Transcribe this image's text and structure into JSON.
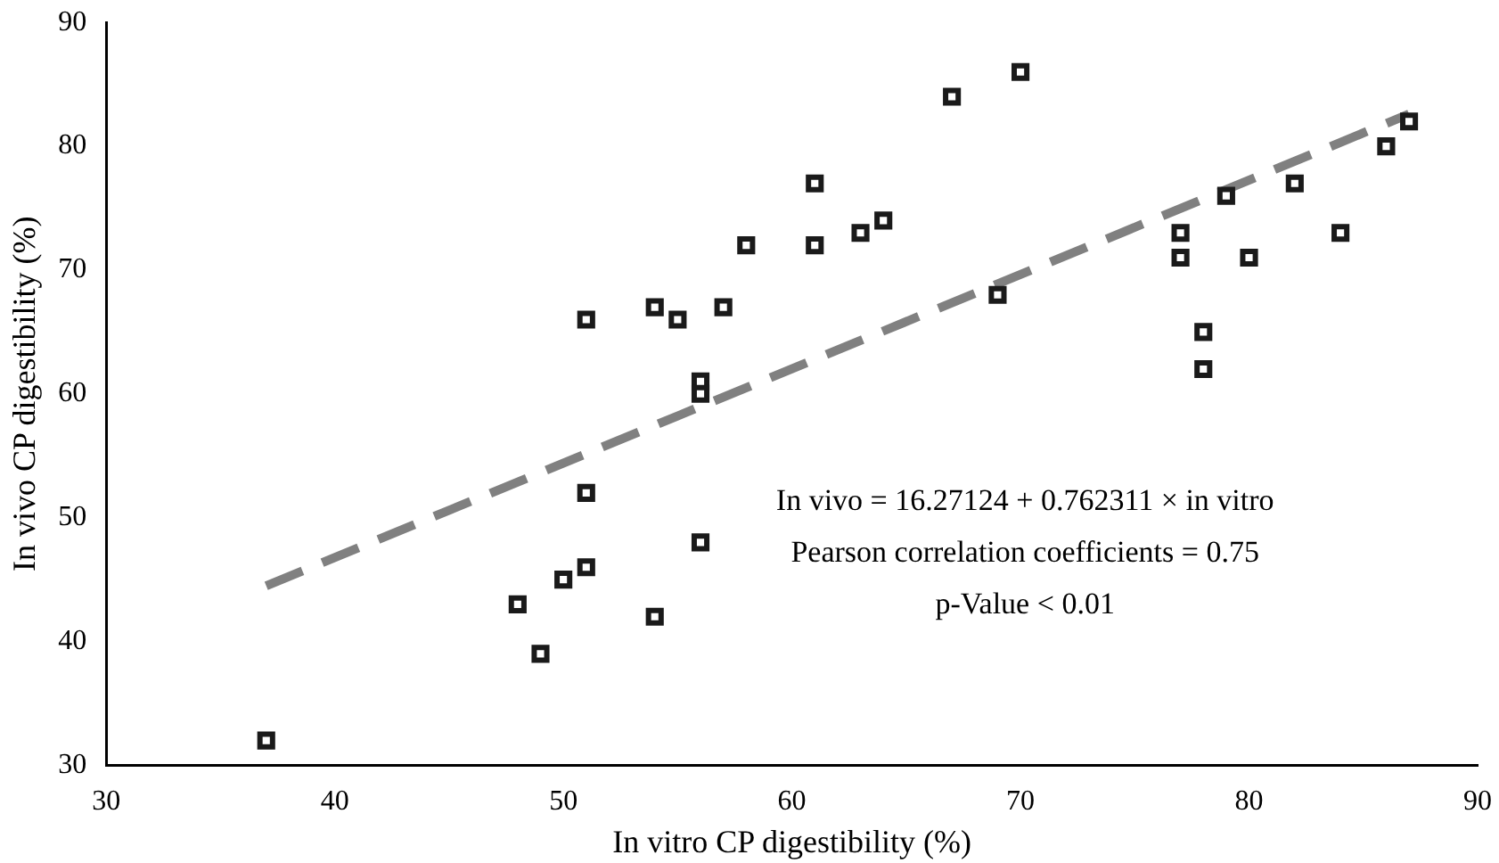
{
  "chart_data": {
    "type": "scatter",
    "xlabel": "In vitro CP digestibility (%)",
    "ylabel": "In vivo CP digestibility (%)",
    "xlim": [
      30,
      90
    ],
    "xticks": [
      30,
      40,
      50,
      60,
      70,
      80,
      90
    ],
    "ylim": [
      30,
      90
    ],
    "yticks": [
      30,
      40,
      50,
      60,
      70,
      80,
      90
    ],
    "grid": false,
    "legend": false,
    "marker": "square",
    "series": [
      {
        "type": "scatter",
        "color": "#1a1a1a",
        "x": [
          37,
          48,
          49,
          50,
          51,
          51,
          51,
          54,
          54,
          55,
          56,
          56,
          56,
          57,
          58,
          61,
          61,
          63,
          64,
          67,
          70,
          69,
          77,
          77,
          78,
          78,
          79,
          80,
          82,
          84,
          86,
          87
        ],
        "values": [
          32,
          43,
          39,
          45,
          46,
          52,
          66,
          42,
          67,
          66,
          61,
          60,
          48,
          67,
          72,
          77,
          72,
          73,
          74,
          84,
          86,
          68,
          73,
          71,
          65,
          62,
          76,
          71,
          77,
          73,
          80,
          82
        ]
      },
      {
        "type": "line",
        "color": "#808080",
        "line_style": "dashed",
        "marker": "none",
        "x": [
          37,
          87
        ],
        "values": [
          44.5,
          82.6
        ]
      }
    ],
    "annotations": [
      "In vivo = 16.27124 + 0.762311 × in vitro",
      "Pearson correlation coefficients = 0.75",
      "p-Value < 0.01"
    ]
  }
}
